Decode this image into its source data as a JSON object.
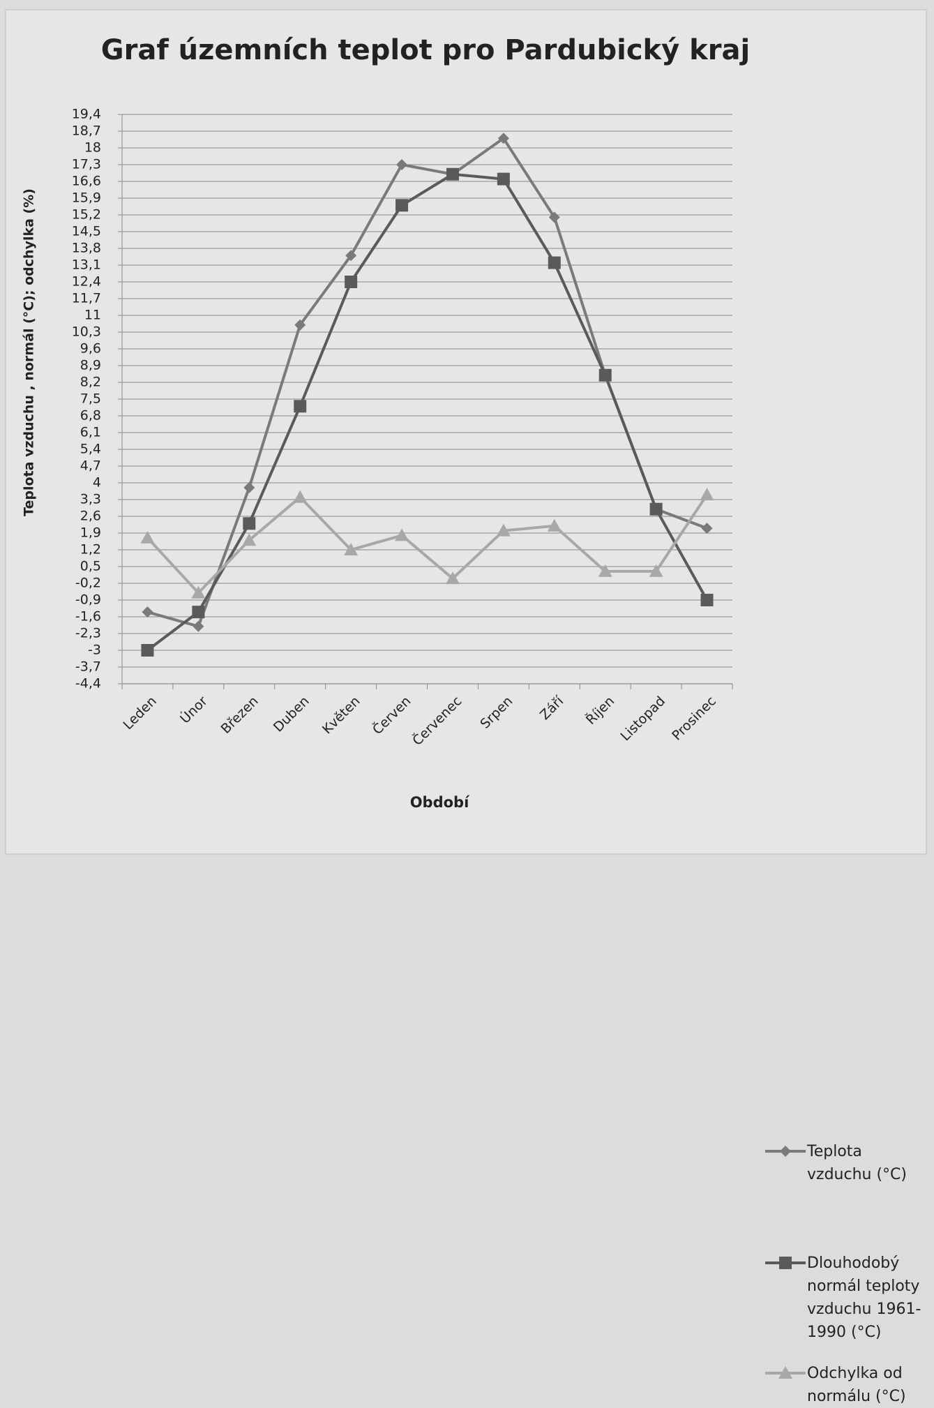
{
  "chart_data": {
    "type": "line",
    "title": "Graf územních teplot pro Pardubický kraj",
    "y_label": "Teplota vzduchu , normál (°C); odchylka (%)",
    "x_label": "Období",
    "categories": [
      "Leden",
      "Únor",
      "Březen",
      "Duben",
      "Květen",
      "Červen",
      "Červenec",
      "Srpen",
      "Září",
      "Říjen",
      "Listopad",
      "Prosinec"
    ],
    "series": [
      {
        "name": "Teplota vzduchu (°C)",
        "color": "#7a7a7a",
        "marker": "diamond",
        "values": [
          -1.4,
          -2.0,
          3.8,
          10.6,
          13.5,
          17.3,
          16.9,
          18.4,
          15.1,
          8.5,
          2.9,
          2.1
        ]
      },
      {
        "name": "Dlouhodobý normál teploty vzduchu 1961-1990 (°C)",
        "color": "#5a5a5a",
        "marker": "square",
        "values": [
          -3.0,
          -1.4,
          2.3,
          7.2,
          12.4,
          15.6,
          16.9,
          16.7,
          13.2,
          8.5,
          2.9,
          -0.9
        ]
      },
      {
        "name": "Odchylka od normálu (°C)",
        "color": "#a8a8a8",
        "marker": "triangle",
        "values": [
          1.7,
          -0.6,
          1.6,
          3.4,
          1.2,
          1.8,
          0.0,
          2.0,
          2.2,
          0.3,
          0.3,
          3.5
        ]
      }
    ],
    "ylim": [
      -4.4,
      19.4
    ],
    "yticks": [
      {
        "value": -4.4,
        "label": "-4,4"
      },
      {
        "value": -3.7,
        "label": "-3,7"
      },
      -3,
      {
        "value": -2.3,
        "label": "-2,3"
      },
      {
        "value": -1.6,
        "label": "-1,6"
      },
      {
        "value": -0.9,
        "label": "-0,9"
      },
      {
        "value": -0.2,
        "label": "-0,2"
      },
      {
        "value": 0.5,
        "label": "0,5"
      },
      {
        "value": 1.2,
        "label": "1,2"
      },
      {
        "value": 1.9,
        "label": "1,9"
      },
      {
        "value": 2.6,
        "label": "2,6"
      },
      {
        "value": 3.3,
        "label": "3,3"
      },
      4,
      {
        "value": 4.7,
        "label": "4,7"
      },
      {
        "value": 5.4,
        "label": "5,4"
      },
      {
        "value": 6.1,
        "label": "6,1"
      },
      {
        "value": 6.8,
        "label": "6,8"
      },
      {
        "value": 7.5,
        "label": "7,5"
      },
      {
        "value": 8.2,
        "label": "8,2"
      },
      {
        "value": 8.9,
        "label": "8,9"
      },
      {
        "value": 9.6,
        "label": "9,6"
      },
      {
        "value": 10.3,
        "label": "10,3"
      },
      11,
      {
        "value": 11.7,
        "label": "11,7"
      },
      {
        "value": 12.4,
        "label": "12,4"
      },
      {
        "value": 13.1,
        "label": "13,1"
      },
      {
        "value": 13.8,
        "label": "13,8"
      },
      {
        "value": 14.5,
        "label": "14,5"
      },
      {
        "value": 15.2,
        "label": "15,2"
      },
      {
        "value": 15.9,
        "label": "15,9"
      },
      {
        "value": 16.6,
        "label": "16,6"
      },
      {
        "value": 17.3,
        "label": "17,3"
      },
      18,
      {
        "value": 18.7,
        "label": "18,7"
      },
      {
        "value": 19.4,
        "label": "19,4"
      }
    ],
    "grid": true,
    "legend": "right"
  }
}
